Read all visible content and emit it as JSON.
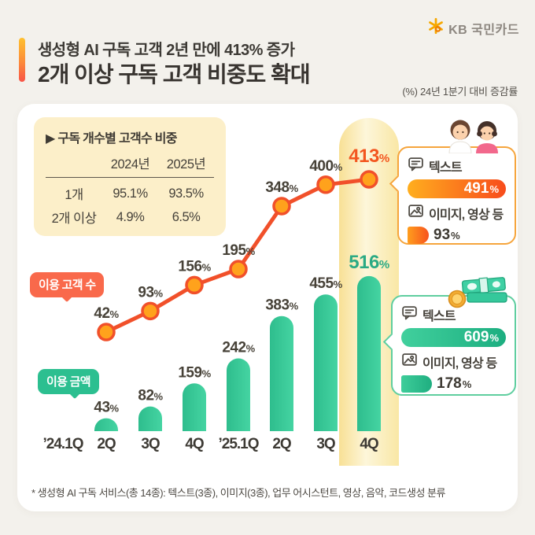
{
  "brand": {
    "logo_text": "KB 국민카드",
    "logo_icon": "kb-star"
  },
  "header": {
    "title_line1": "생성형 AI 구독 고객 2년 만에 413% 증가",
    "title_line2": "2개 이상 구독 고객 비중도 확대",
    "unit_note": "(%) 24년 1분기 대비 증감률"
  },
  "table": {
    "title": "▶ 구독 개수별 고객수 비중",
    "columns": [
      "2024년",
      "2025년"
    ],
    "rows": [
      {
        "label": "1개",
        "values": [
          "95.1%",
          "93.5%"
        ]
      },
      {
        "label": "2개 이상",
        "values": [
          "4.9%",
          "6.5%"
        ]
      }
    ]
  },
  "legend": {
    "line_label": "이용 고객 수",
    "bar_label": "이용 금액"
  },
  "chart_data": {
    "type": "combo",
    "categories": [
      "’24.1Q",
      "2Q",
      "3Q",
      "4Q",
      "’25.1Q",
      "2Q",
      "3Q",
      "4Q"
    ],
    "series": [
      {
        "name": "이용 고객 수",
        "type": "line",
        "unit": "%",
        "color": "#f1502a",
        "values": [
          null,
          42,
          93,
          156,
          195,
          348,
          400,
          413
        ]
      },
      {
        "name": "이용 금액",
        "type": "bar",
        "unit": "%",
        "color": "#3ecd9a",
        "values": [
          null,
          43,
          82,
          159,
          242,
          383,
          455,
          516
        ]
      }
    ],
    "baseline_note": "(%) 24년 1분기 대비 증감률",
    "highlight_index": 7,
    "grid": false,
    "legend_position": "left-inline"
  },
  "callouts": [
    {
      "theme": "orange",
      "illustration": "two-people",
      "items": [
        {
          "icon": "text-bubble-icon",
          "label": "텍스트",
          "value": "491",
          "unit": "%"
        },
        {
          "icon": "image-icon",
          "label": "이미지, 영상 등",
          "value": "93",
          "unit": "%"
        }
      ]
    },
    {
      "theme": "green",
      "illustration": "money-stack",
      "items": [
        {
          "icon": "text-bubble-icon",
          "label": "텍스트",
          "value": "609",
          "unit": "%"
        },
        {
          "icon": "image-icon",
          "label": "이미지, 영상 등",
          "value": "178",
          "unit": "%"
        }
      ]
    }
  ],
  "footnote": "* 생성형 AI 구독 서비스(총 14종): 텍스트(3종), 이미지(3종), 업무 어시스턴트, 영상, 음악, 코드생성 분류",
  "colors": {
    "line": "#f1502a",
    "marker_fill": "#ffa21c",
    "bar": "#3ecd9a",
    "line_highlight_label": "#f3561f",
    "bar_highlight_label": "#2baa84",
    "value_label": "#474238",
    "highlight_band": "#f8e095",
    "table_bg": "#fcefc9",
    "badge_orange": "#f9694b",
    "badge_green": "#2cbf90",
    "card_bg": "#ffffff",
    "page_bg": "#f3f1ec"
  }
}
